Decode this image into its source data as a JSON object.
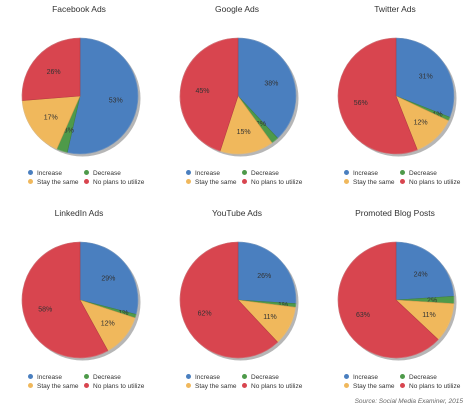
{
  "legend_labels": {
    "increase": "Increase",
    "decrease": "Decrease",
    "same": "Stay the same",
    "no_plans": "No plans to utilize"
  },
  "colors": {
    "increase": "#4a7fbf",
    "decrease": "#4e9a4a",
    "same": "#f0b85c",
    "no_plans": "#d8454f"
  },
  "source": "Source: Social Media Examiner, 2015",
  "chart_data": [
    {
      "type": "pie",
      "title": "Facebook Ads",
      "slices": [
        {
          "key": "increase",
          "value": 53,
          "label": "53%"
        },
        {
          "key": "decrease",
          "value": 3,
          "label": "3%"
        },
        {
          "key": "same",
          "value": 17,
          "label": "17%"
        },
        {
          "key": "no_plans",
          "value": 26,
          "label": "26%"
        }
      ]
    },
    {
      "type": "pie",
      "title": "Google Ads",
      "slices": [
        {
          "key": "increase",
          "value": 38,
          "label": "38%"
        },
        {
          "key": "decrease",
          "value": 2,
          "label": "2%"
        },
        {
          "key": "same",
          "value": 15,
          "label": "15%"
        },
        {
          "key": "no_plans",
          "value": 45,
          "label": "45%"
        }
      ]
    },
    {
      "type": "pie",
      "title": "Twitter Ads",
      "slices": [
        {
          "key": "increase",
          "value": 31,
          "label": "31%"
        },
        {
          "key": "decrease",
          "value": 1,
          "label": "1%"
        },
        {
          "key": "same",
          "value": 12,
          "label": "12%"
        },
        {
          "key": "no_plans",
          "value": 56,
          "label": "56%"
        }
      ]
    },
    {
      "type": "pie",
      "title": "LinkedIn Ads",
      "slices": [
        {
          "key": "increase",
          "value": 29,
          "label": "29%"
        },
        {
          "key": "decrease",
          "value": 1,
          "label": "1%"
        },
        {
          "key": "same",
          "value": 12,
          "label": "12%"
        },
        {
          "key": "no_plans",
          "value": 58,
          "label": "58%"
        }
      ]
    },
    {
      "type": "pie",
      "title": "YouTube Ads",
      "slices": [
        {
          "key": "increase",
          "value": 26,
          "label": "26%"
        },
        {
          "key": "decrease",
          "value": 1,
          "label": "1%"
        },
        {
          "key": "same",
          "value": 11,
          "label": "11%"
        },
        {
          "key": "no_plans",
          "value": 62,
          "label": "62%"
        }
      ]
    },
    {
      "type": "pie",
      "title": "Promoted Blog Posts",
      "slices": [
        {
          "key": "increase",
          "value": 24,
          "label": "24%"
        },
        {
          "key": "decrease",
          "value": 2,
          "label": "2%"
        },
        {
          "key": "same",
          "value": 11,
          "label": "11%"
        },
        {
          "key": "no_plans",
          "value": 63,
          "label": "63%"
        }
      ]
    }
  ]
}
